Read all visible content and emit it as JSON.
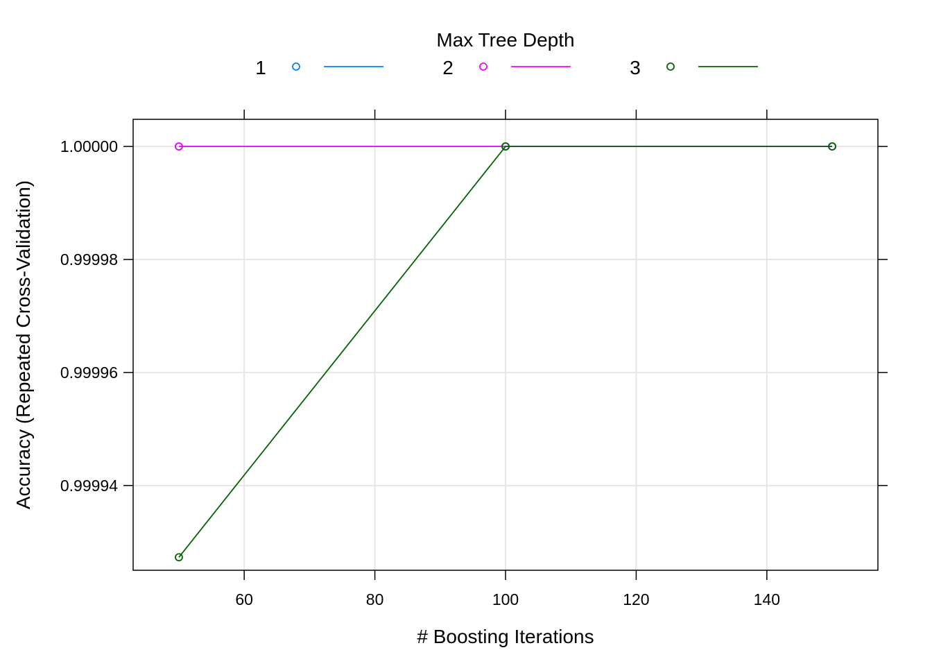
{
  "chart_data": {
    "type": "line",
    "legend": {
      "title": "Max Tree Depth",
      "position": "top"
    },
    "xlabel": "# Boosting Iterations",
    "ylabel": "Accuracy (Repeated Cross-Validation)",
    "xlim": [
      43,
      157
    ],
    "ylim": [
      0.999925,
      1.0000048
    ],
    "x_ticks": [
      60,
      80,
      100,
      120,
      140
    ],
    "y_ticks": [
      0.99994,
      0.99996,
      0.99998,
      1.0
    ],
    "y_tick_labels": [
      "0.99994",
      "0.99996",
      "0.99998",
      "1.00000"
    ],
    "grid": true,
    "series": [
      {
        "name": "1",
        "color": "#0080ff",
        "x": [
          50,
          100,
          150
        ],
        "y": [
          1.0,
          1.0,
          1.0
        ]
      },
      {
        "name": "2",
        "color": "#ff00ff",
        "x": [
          50,
          100,
          150
        ],
        "y": [
          1.0,
          1.0,
          1.0
        ]
      },
      {
        "name": "3",
        "color": "#006400",
        "x": [
          50,
          100,
          150
        ],
        "y": [
          0.9999273,
          1.0,
          1.0
        ]
      }
    ]
  }
}
